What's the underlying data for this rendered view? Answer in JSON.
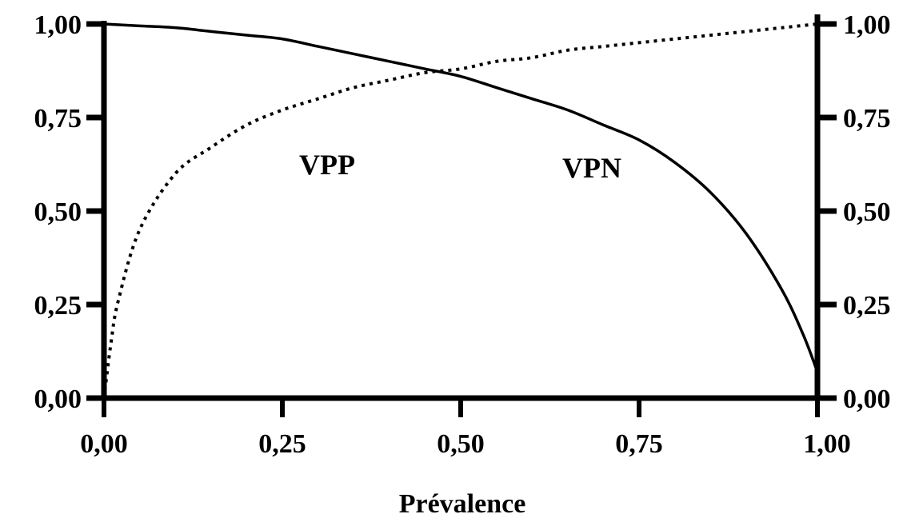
{
  "chart_data": {
    "type": "line",
    "title": "",
    "xlabel": "Prévalence",
    "ylabel": "",
    "xlim": [
      0,
      1
    ],
    "ylim": [
      0,
      1
    ],
    "x_ticks": [
      "0,00",
      "0,25",
      "0,50",
      "0,75",
      "1,00"
    ],
    "y_ticks_left": [
      "0,00",
      "0,25",
      "0,50",
      "0,75",
      "1,00"
    ],
    "y_ticks_right": [
      "0,00",
      "0,25",
      "0,50",
      "0,75",
      "1,00"
    ],
    "grid": false,
    "legend": "none",
    "series": [
      {
        "name": "VPP",
        "line_style": "dotted",
        "x": [
          0.0,
          0.01,
          0.02,
          0.05,
          0.1,
          0.15,
          0.2,
          0.25,
          0.3,
          0.35,
          0.4,
          0.45,
          0.5,
          0.55,
          0.6,
          0.65,
          0.7,
          0.75,
          0.8,
          0.85,
          0.9,
          0.95,
          1.0
        ],
        "y": [
          0.0,
          0.15,
          0.26,
          0.45,
          0.6,
          0.67,
          0.73,
          0.77,
          0.8,
          0.83,
          0.85,
          0.87,
          0.88,
          0.9,
          0.91,
          0.93,
          0.94,
          0.95,
          0.96,
          0.97,
          0.98,
          0.99,
          1.0
        ]
      },
      {
        "name": "VPN",
        "line_style": "solid",
        "x": [
          0.0,
          0.05,
          0.1,
          0.15,
          0.2,
          0.25,
          0.3,
          0.35,
          0.4,
          0.45,
          0.5,
          0.55,
          0.6,
          0.65,
          0.7,
          0.75,
          0.8,
          0.85,
          0.9,
          0.95,
          0.98,
          1.0
        ],
        "y": [
          1.0,
          0.995,
          0.99,
          0.98,
          0.97,
          0.96,
          0.94,
          0.92,
          0.9,
          0.88,
          0.86,
          0.83,
          0.8,
          0.77,
          0.73,
          0.69,
          0.63,
          0.55,
          0.44,
          0.29,
          0.17,
          0.07
        ]
      }
    ]
  }
}
